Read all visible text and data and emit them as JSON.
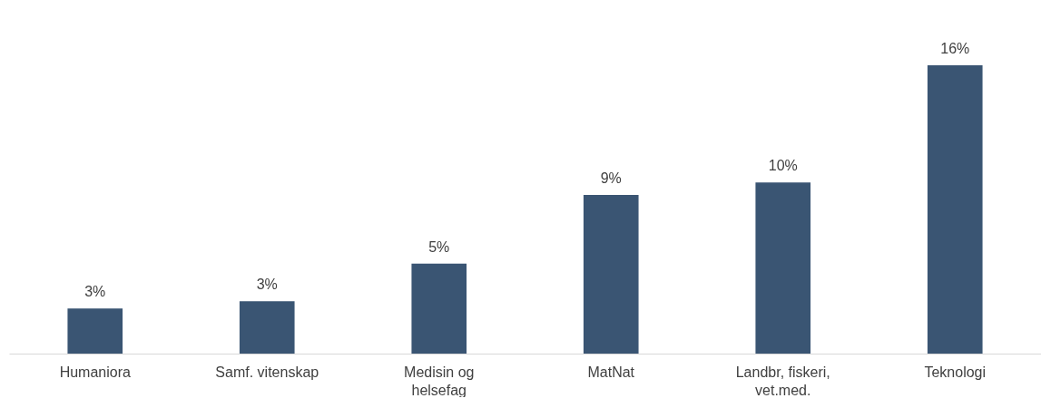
{
  "chart_data": {
    "type": "bar",
    "categories": [
      "Humaniora",
      "Samf. vitenskap",
      "Medisin og helsefag",
      "MatNat",
      "Landbr, fiskeri, vet.med.",
      "Teknologi"
    ],
    "values": [
      2.5,
      2.9,
      5.0,
      8.8,
      9.5,
      16.0
    ],
    "value_labels": [
      "3%",
      "3%",
      "5%",
      "9%",
      "10%",
      "16%"
    ],
    "color": "#3a5573"
  }
}
